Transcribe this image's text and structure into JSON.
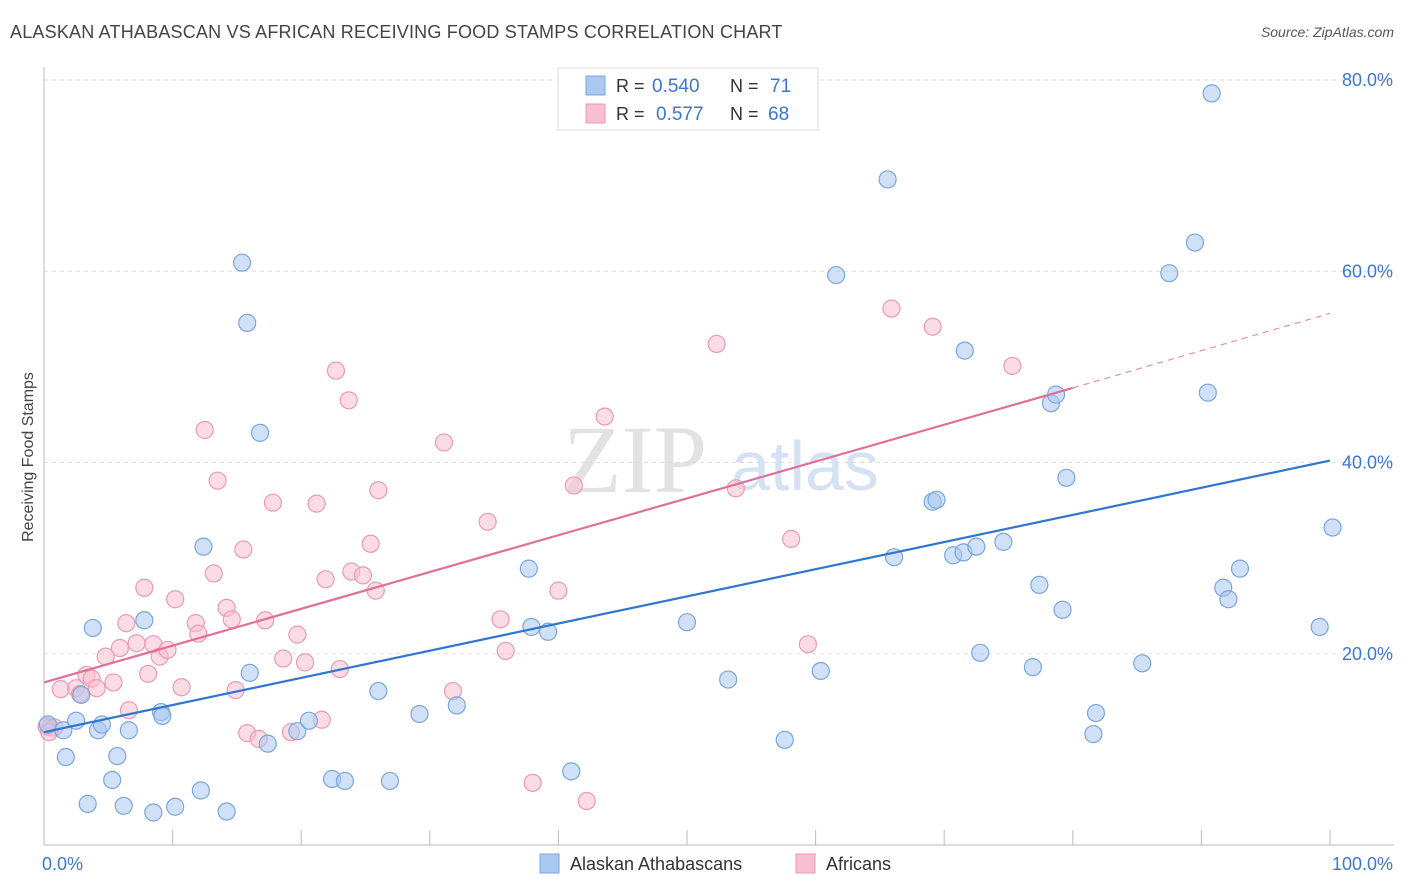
{
  "title": "ALASKAN ATHABASCAN VS AFRICAN RECEIVING FOOD STAMPS CORRELATION CHART",
  "source": "Source: ZipAtlas.com",
  "colors": {
    "blue_fill": "#aac8f0",
    "blue_stroke": "#7aa6dc",
    "blue_line": "#2f76d0",
    "pink_fill": "#f7bfd0",
    "pink_stroke": "#eb9ab4",
    "pink_line": "#e0709a",
    "tick_label": "#3a78d0",
    "grid": "#dddddd"
  },
  "legend_top": [
    {
      "r_label": "R =",
      "r_value": "0.540",
      "n_label": "N =",
      "n_value": "71",
      "color": "blue"
    },
    {
      "r_label": "R =",
      "r_value": "0.577",
      "n_label": "N =",
      "n_value": "68",
      "color": "pink"
    }
  ],
  "legend_bottom": [
    {
      "label": "Alaskan Athabascans",
      "color": "blue"
    },
    {
      "label": "Africans",
      "color": "pink"
    }
  ],
  "watermark": {
    "zip": "ZIP",
    "atlas": "atlas"
  },
  "chart_data": {
    "type": "scatter",
    "ylabel": "Receiving Food Stamps",
    "xlabel": "",
    "xlim": [
      0,
      100
    ],
    "ylim": [
      0,
      80
    ],
    "x_tick_labels": [
      {
        "value": 0,
        "label": "0.0%"
      },
      {
        "value": 100,
        "label": "100.0%"
      }
    ],
    "y_tick_labels": [
      {
        "value": 20,
        "label": "20.0%"
      },
      {
        "value": 40,
        "label": "40.0%"
      },
      {
        "value": 60,
        "label": "60.0%"
      },
      {
        "value": 80,
        "label": "80.0%"
      }
    ],
    "grid": true,
    "legend_position": "top-center",
    "series": [
      {
        "name": "Alaskan Athabascans",
        "color": "blue",
        "r": 0.54,
        "n": 71,
        "trend": {
          "x": [
            0,
            100
          ],
          "y": [
            11.8,
            40.2
          ]
        },
        "points": [
          [
            0.3,
            12.6
          ],
          [
            1.5,
            12.0
          ],
          [
            1.7,
            9.2
          ],
          [
            2.5,
            13.0
          ],
          [
            2.9,
            15.7
          ],
          [
            3.4,
            4.3
          ],
          [
            3.8,
            22.7
          ],
          [
            4.2,
            12.0
          ],
          [
            4.5,
            12.6
          ],
          [
            5.3,
            6.8
          ],
          [
            5.7,
            9.3
          ],
          [
            6.2,
            4.1
          ],
          [
            6.6,
            12.0
          ],
          [
            7.8,
            23.5
          ],
          [
            8.5,
            3.4
          ],
          [
            9.1,
            13.9
          ],
          [
            9.2,
            13.5
          ],
          [
            10.2,
            4.0
          ],
          [
            12.2,
            5.7
          ],
          [
            12.4,
            31.2
          ],
          [
            14.2,
            3.5
          ],
          [
            15.4,
            60.9
          ],
          [
            15.8,
            54.6
          ],
          [
            16.8,
            43.1
          ],
          [
            17.4,
            10.6
          ],
          [
            19.7,
            11.9
          ],
          [
            20.6,
            13.0
          ],
          [
            22.4,
            6.9
          ],
          [
            23.4,
            6.7
          ],
          [
            26.0,
            16.1
          ],
          [
            26.9,
            6.7
          ],
          [
            29.2,
            13.7
          ],
          [
            32.1,
            14.6
          ],
          [
            37.7,
            28.9
          ],
          [
            37.9,
            22.8
          ],
          [
            39.2,
            22.3
          ],
          [
            41.0,
            7.7
          ],
          [
            50.0,
            23.3
          ],
          [
            53.2,
            17.3
          ],
          [
            57.6,
            11.0
          ],
          [
            60.4,
            18.2
          ],
          [
            61.6,
            59.6
          ],
          [
            65.6,
            69.6
          ],
          [
            66.1,
            30.1
          ],
          [
            69.1,
            35.9
          ],
          [
            69.4,
            36.1
          ],
          [
            70.7,
            30.3
          ],
          [
            71.5,
            30.6
          ],
          [
            71.6,
            51.7
          ],
          [
            72.5,
            31.2
          ],
          [
            72.8,
            20.1
          ],
          [
            74.6,
            31.7
          ],
          [
            76.9,
            18.6
          ],
          [
            77.4,
            27.2
          ],
          [
            78.3,
            46.2
          ],
          [
            78.7,
            47.1
          ],
          [
            79.2,
            24.6
          ],
          [
            79.5,
            38.4
          ],
          [
            81.6,
            11.6
          ],
          [
            81.8,
            13.8
          ],
          [
            85.4,
            19.0
          ],
          [
            87.5,
            59.8
          ],
          [
            89.5,
            63.0
          ],
          [
            90.5,
            47.3
          ],
          [
            90.8,
            78.6
          ],
          [
            91.7,
            26.9
          ],
          [
            92.1,
            25.7
          ],
          [
            93.0,
            28.9
          ],
          [
            99.2,
            22.8
          ],
          [
            100.2,
            33.2
          ],
          [
            16.0,
            18.0
          ]
        ]
      },
      {
        "name": "Africans",
        "color": "pink",
        "r": 0.577,
        "n": 68,
        "trend": {
          "x": [
            0,
            80
          ],
          "y": [
            17.0,
            47.8
          ]
        },
        "trend_dashed": {
          "x": [
            80,
            100
          ],
          "y": [
            47.8,
            55.6
          ]
        },
        "points": [
          [
            0.2,
            12.4
          ],
          [
            0.5,
            12.3
          ],
          [
            0.8,
            12.3
          ],
          [
            1.3,
            16.3
          ],
          [
            2.5,
            16.4
          ],
          [
            2.8,
            15.8
          ],
          [
            3.3,
            17.8
          ],
          [
            3.7,
            17.4
          ],
          [
            4.1,
            16.4
          ],
          [
            4.8,
            19.7
          ],
          [
            5.4,
            17.0
          ],
          [
            5.9,
            20.6
          ],
          [
            6.4,
            23.2
          ],
          [
            6.6,
            14.1
          ],
          [
            7.2,
            21.1
          ],
          [
            7.8,
            26.9
          ],
          [
            8.1,
            17.9
          ],
          [
            8.5,
            21.0
          ],
          [
            9.0,
            19.7
          ],
          [
            9.6,
            20.4
          ],
          [
            10.2,
            25.7
          ],
          [
            10.7,
            16.5
          ],
          [
            11.8,
            23.2
          ],
          [
            12.0,
            22.1
          ],
          [
            12.5,
            43.4
          ],
          [
            13.2,
            28.4
          ],
          [
            13.5,
            38.1
          ],
          [
            14.2,
            24.8
          ],
          [
            14.6,
            23.6
          ],
          [
            14.9,
            16.2
          ],
          [
            15.5,
            30.9
          ],
          [
            15.8,
            11.7
          ],
          [
            16.7,
            11.1
          ],
          [
            17.2,
            23.5
          ],
          [
            17.8,
            35.8
          ],
          [
            18.6,
            19.5
          ],
          [
            19.2,
            11.8
          ],
          [
            19.7,
            22.0
          ],
          [
            20.3,
            19.1
          ],
          [
            21.2,
            35.7
          ],
          [
            21.6,
            13.1
          ],
          [
            21.9,
            27.8
          ],
          [
            22.7,
            49.6
          ],
          [
            23.0,
            18.4
          ],
          [
            23.7,
            46.5
          ],
          [
            23.9,
            28.6
          ],
          [
            24.8,
            28.2
          ],
          [
            25.4,
            31.5
          ],
          [
            25.8,
            26.6
          ],
          [
            26.0,
            37.1
          ],
          [
            31.1,
            42.1
          ],
          [
            31.8,
            16.1
          ],
          [
            34.5,
            33.8
          ],
          [
            35.5,
            23.6
          ],
          [
            35.9,
            20.3
          ],
          [
            38.0,
            6.5
          ],
          [
            40.0,
            26.6
          ],
          [
            41.2,
            37.6
          ],
          [
            42.2,
            4.6
          ],
          [
            43.6,
            44.8
          ],
          [
            52.3,
            52.4
          ],
          [
            53.8,
            37.3
          ],
          [
            58.1,
            32.0
          ],
          [
            59.4,
            21.0
          ],
          [
            65.9,
            56.1
          ],
          [
            69.1,
            54.2
          ],
          [
            75.3,
            50.1
          ],
          [
            0.4,
            11.8
          ]
        ]
      }
    ]
  }
}
